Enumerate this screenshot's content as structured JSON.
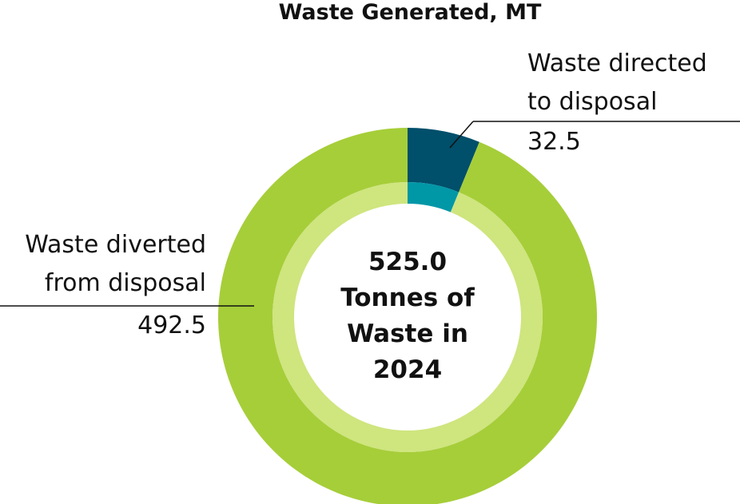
{
  "chart_data": {
    "type": "donut",
    "title": "Waste Generated, MT",
    "center_label": "525.0 Tonnes of Waste in 2024",
    "categories": [
      "Waste directed to disposal",
      "Waste diverted from disposal"
    ],
    "values": [
      32.5,
      492.5
    ],
    "colors": [
      "#004f6b",
      "#a6ce39"
    ],
    "inner_colors": [
      "#0097a7",
      "#cfe57e"
    ]
  }
}
